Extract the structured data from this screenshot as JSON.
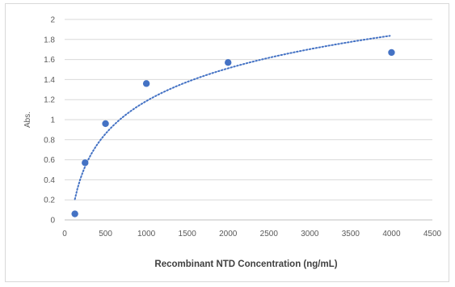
{
  "chart_data": {
    "type": "scatter",
    "title": "",
    "xlabel": "Recombinant NTD Concentration (ng/mL)",
    "ylabel": "Abs.",
    "xlim": [
      0,
      4500
    ],
    "ylim": [
      0,
      2
    ],
    "xticks": [
      0,
      500,
      1000,
      1500,
      2000,
      2500,
      3000,
      3500,
      4000,
      4500
    ],
    "yticks": [
      0,
      0.2,
      0.4,
      0.6,
      0.8,
      1,
      1.2,
      1.4,
      1.6,
      1.8,
      2
    ],
    "grid": true,
    "legend": "none",
    "series": [
      {
        "x": [
          125,
          250,
          500,
          1000,
          2000,
          4000
        ],
        "y": [
          0.06,
          0.57,
          0.96,
          1.36,
          1.57,
          1.67
        ],
        "marker_color": "#4472C4"
      }
    ],
    "trendline": {
      "type": "logarithmic",
      "style": "dotted",
      "color": "#4472C4",
      "x_range": [
        125,
        3980
      ],
      "coefficients": {
        "a": 0.471,
        "b": -2.068
      }
    }
  }
}
